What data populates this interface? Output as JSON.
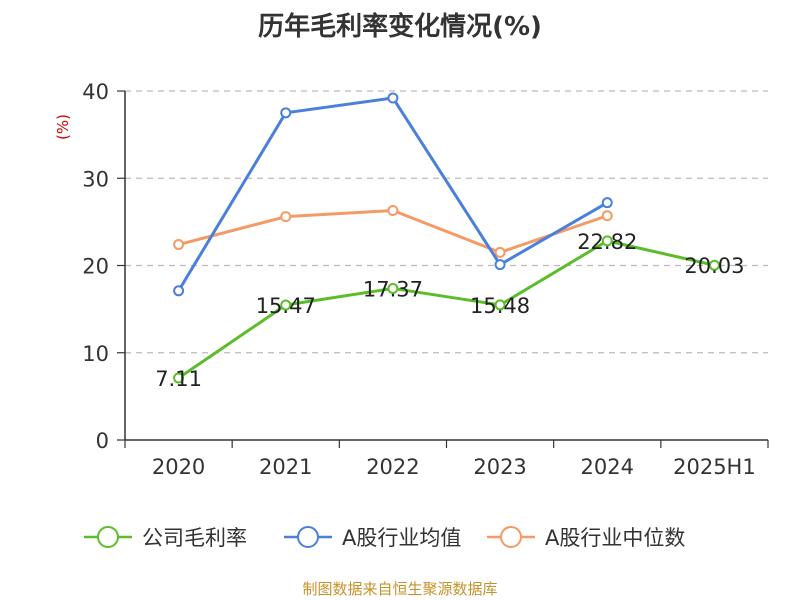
{
  "title": "历年毛利率变化情况(%)",
  "source": "制图数据来自恒生聚源数据库",
  "colors": {
    "axis": "#333333",
    "grid": "#bbbbbb",
    "unit": "#cc0000",
    "label": "#222222"
  },
  "chart_data": {
    "type": "line",
    "ylabel": "(%)",
    "ylim": [
      0,
      40
    ],
    "yticks": [
      0,
      10,
      20,
      30,
      40
    ],
    "grid": true,
    "legend_position": "bottom",
    "categories": [
      "2020",
      "2021",
      "2022",
      "2023",
      "2024",
      "2025H1"
    ],
    "series": [
      {
        "name": "公司毛利率",
        "color": "#5cbd2a",
        "values": [
          7.11,
          15.47,
          17.37,
          15.48,
          22.82,
          20.03
        ],
        "labels": [
          "7.11",
          "15.47",
          "17.37",
          "15.48",
          "22.82",
          "20.03"
        ]
      },
      {
        "name": "A股行业均值",
        "color": "#4a7fdb",
        "values": [
          17.1,
          37.5,
          39.2,
          20.1,
          27.2,
          null
        ]
      },
      {
        "name": "A股行业中位数",
        "color": "#f59a64",
        "values": [
          22.4,
          25.6,
          26.3,
          21.5,
          25.7,
          null
        ]
      }
    ]
  }
}
